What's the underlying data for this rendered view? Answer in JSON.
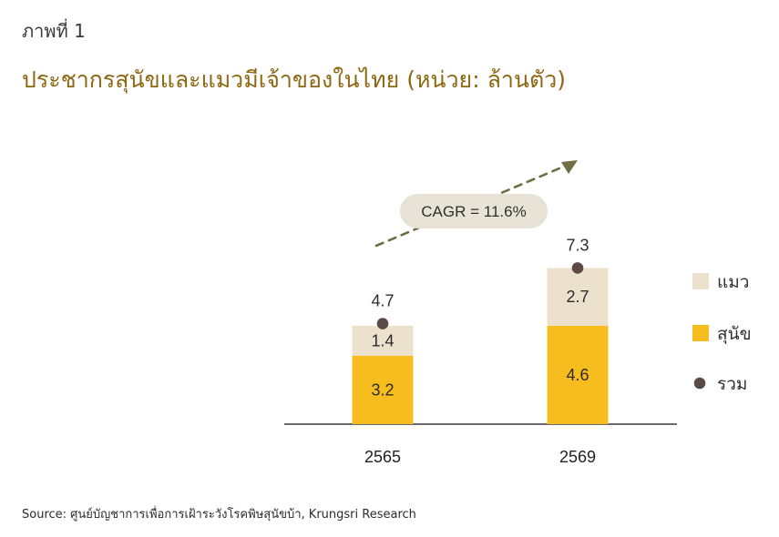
{
  "header": {
    "figure_label": "ภาพที่ 1",
    "title": "ประชากรสุนัขและแมวมีเจ้าของในไทย (หน่วย: ล้านตัว)"
  },
  "footer": {
    "source": "Source: ศูนย์บัญชาการเพื่อการเฝ้าระวังโรคพิษสุนัขบ้า, Krungsri Research"
  },
  "colors": {
    "dog": "#f7bc1e",
    "cat": "#ece1cc",
    "total_marker": "#5c4a47",
    "trend_arrow": "#6f6d43",
    "cagr_box": "#e7e3d7",
    "axis": "#6a6a6a"
  },
  "chart_data": {
    "type": "bar",
    "stacked": true,
    "categories": [
      "2565",
      "2569"
    ],
    "series": [
      {
        "name": "สุนัข",
        "values": [
          3.2,
          4.6
        ]
      },
      {
        "name": "แมว",
        "values": [
          1.4,
          2.7
        ]
      }
    ],
    "totals": {
      "name": "รวม",
      "values": [
        4.7,
        7.3
      ]
    },
    "annotation": {
      "text": "CAGR = 11.6%"
    },
    "legend": [
      "แมว",
      "สุนัข",
      "รวม"
    ],
    "legend_position": "right",
    "title": "ประชากรสุนัขและแมวมีเจ้าของในไทย (หน่วย: ล้านตัว)",
    "ylim": [
      0,
      8.7
    ],
    "grid": false
  }
}
